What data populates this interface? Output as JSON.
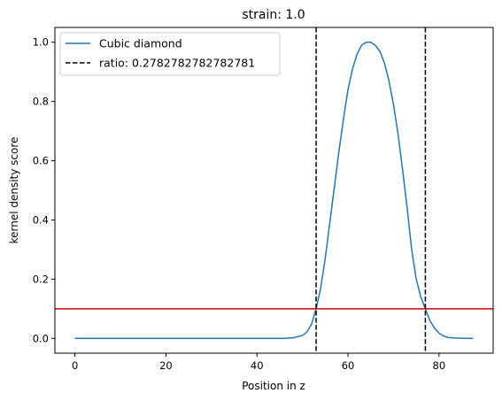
{
  "chart_data": {
    "type": "line",
    "title": "strain: 1.0",
    "xlabel": "Position in z",
    "ylabel": "kernel density score",
    "xlim": [
      -4.4,
      91.9
    ],
    "ylim": [
      -0.05,
      1.05
    ],
    "xticks": [
      0,
      20,
      40,
      60,
      80
    ],
    "yticks": [
      0.0,
      0.2,
      0.4,
      0.6,
      0.8,
      1.0
    ],
    "xtick_labels": [
      "0",
      "20",
      "40",
      "60",
      "80"
    ],
    "ytick_labels": [
      "0.0",
      "0.2",
      "0.4",
      "0.6",
      "0.8",
      "1.0"
    ],
    "grid": false,
    "legend_position": "upper-left",
    "series": [
      {
        "name": "Cubic diamond",
        "color": "#1f77b4",
        "style": "solid",
        "x": [
          0,
          10,
          20,
          30,
          40,
          46,
          48,
          50,
          51,
          52,
          53,
          54,
          55,
          56,
          57,
          58,
          59,
          60,
          61,
          62,
          63,
          64,
          65,
          66,
          67,
          68,
          69,
          70,
          71,
          72,
          73,
          74,
          75,
          76,
          77,
          78,
          79,
          80,
          81,
          82,
          84,
          86,
          87.5
        ],
        "y": [
          0.0,
          0.0,
          0.0,
          0.0,
          0.0,
          0.0,
          0.002,
          0.01,
          0.022,
          0.048,
          0.1,
          0.17,
          0.27,
          0.39,
          0.51,
          0.63,
          0.74,
          0.84,
          0.91,
          0.96,
          0.99,
          1.0,
          1.0,
          0.99,
          0.97,
          0.93,
          0.87,
          0.79,
          0.69,
          0.57,
          0.44,
          0.3,
          0.2,
          0.14,
          0.1,
          0.06,
          0.035,
          0.018,
          0.008,
          0.003,
          0.001,
          0.0,
          0.0
        ]
      }
    ],
    "vlines": [
      {
        "x": 53,
        "color": "#000000",
        "style": "dashed",
        "legend": "ratio: 0.2782782782782781"
      },
      {
        "x": 77,
        "color": "#000000",
        "style": "dashed",
        "legend": ""
      }
    ],
    "hlines": [
      {
        "y": 0.1,
        "color": "#e00000",
        "style": "solid"
      }
    ],
    "legend": [
      {
        "label": "Cubic diamond",
        "color": "#1f77b4",
        "style": "solid"
      },
      {
        "label": "ratio: 0.2782782782782781",
        "color": "#000000",
        "style": "dashed"
      }
    ]
  }
}
